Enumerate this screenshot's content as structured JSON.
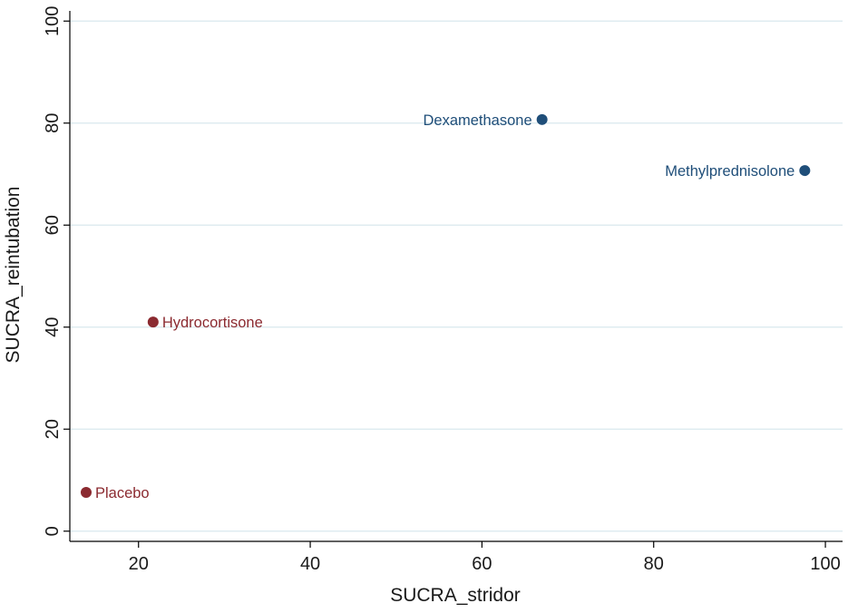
{
  "chart_data": {
    "type": "scatter",
    "title": "",
    "xlabel": "SUCRA_stridor",
    "ylabel": "SUCRA_reintubation",
    "xlim": [
      12,
      102
    ],
    "ylim": [
      -2,
      102
    ],
    "xticks": [
      20,
      40,
      60,
      80,
      100
    ],
    "yticks": [
      0,
      20,
      40,
      60,
      80,
      100
    ],
    "grid": "horizontal",
    "legend": "none",
    "points": [
      {
        "label": "Placebo",
        "x": 13.9,
        "y": 7.6,
        "color": "#8b2a30",
        "label_side": "right"
      },
      {
        "label": "Hydrocortisone",
        "x": 21.7,
        "y": 41.0,
        "color": "#8b2a30",
        "label_side": "right"
      },
      {
        "label": "Dexamethasone",
        "x": 67.0,
        "y": 80.7,
        "color": "#1f4e79",
        "label_side": "left"
      },
      {
        "label": "Methylprednisolone",
        "x": 97.6,
        "y": 70.7,
        "color": "#1f4e79",
        "label_side": "left"
      }
    ],
    "colors": {
      "axis": "#000000",
      "grid": "#d9e8ee",
      "text": "#1a1a1a"
    }
  }
}
